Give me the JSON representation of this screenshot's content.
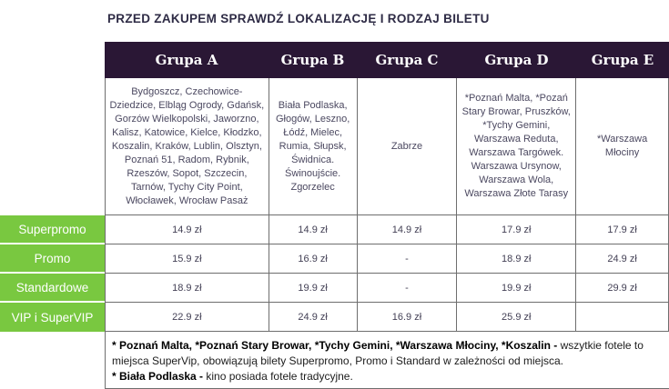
{
  "title": "PRZED ZAKUPEM SPRAWDŹ LOKALIZACJĘ I RODZAJ BILETU",
  "colors": {
    "header_bg": "#2a1735",
    "row_label_green": "#79c840",
    "title_text": "#2e2b45",
    "table_border": "#6e6e6e"
  },
  "table": {
    "groups": [
      {
        "label": "Grupa A",
        "cities": "Bydgoszcz, Czechowice-Dziedzice, Elbląg Ogrody, Gdańsk, Gorzów Wielkopolski, Jaworzno, Kalisz, Katowice, Kielce, Kłodzko, Koszalin, Kraków, Lublin, Olsztyn, Poznań 51, Radom, Rybnik, Rzeszów, Sopot, Szczecin, Tarnów, Tychy City Point, Włocławek, Wrocław Pasaż"
      },
      {
        "label": "Grupa B",
        "cities": "Biała Podlaska, Głogów, Leszno, Łódź, Mielec, Rumia, Słupsk, Świdnica. Świnoujście. Zgorzelec"
      },
      {
        "label": "Grupa C",
        "cities": "Zabrze"
      },
      {
        "label": "Grupa D",
        "cities": "*Poznań Malta, *Pozań Stary Browar, Pruszków, *Tychy Gemini, Warszawa Reduta, Warszawa Targówek. Warszawa Ursynow, Warszawa Wola, Warszawa Złote Tarasy"
      },
      {
        "label": "Grupa E",
        "cities": "*Warszawa Młociny"
      }
    ],
    "rows": [
      {
        "label": "Superpromo",
        "prices": [
          "14.9 zł",
          "14.9 zł",
          "14.9 zł",
          "17.9 zł",
          "17.9 zł"
        ]
      },
      {
        "label": "Promo",
        "prices": [
          "15.9 zł",
          "16.9 zł",
          "-",
          "18.9 zł",
          "24.9 zł"
        ]
      },
      {
        "label": "Standardowe",
        "prices": [
          "18.9 zł",
          "19.9 zł",
          "-",
          "19.9 zł",
          "29.9 zł"
        ]
      },
      {
        "label": "VIP i SuperVIP",
        "prices": [
          "22.9 zł",
          "24.9 zł",
          "16.9 zł",
          "25.9 zł",
          ""
        ]
      }
    ]
  },
  "footer": {
    "note1_bold": "* Poznań Malta, *Poznań Stary Browar, *Tychy Gemini, *Warszawa Młociny, *Koszalin -",
    "note1_rest": " wszytkie fotele to miejsca SuperVip, obowiązują bilety Superpromo, Promo i Standard w zależności od miejsca.",
    "note2_bold": "* Biała Podlaska -",
    "note2_rest": " kino posiada fotele tradycyjne."
  }
}
